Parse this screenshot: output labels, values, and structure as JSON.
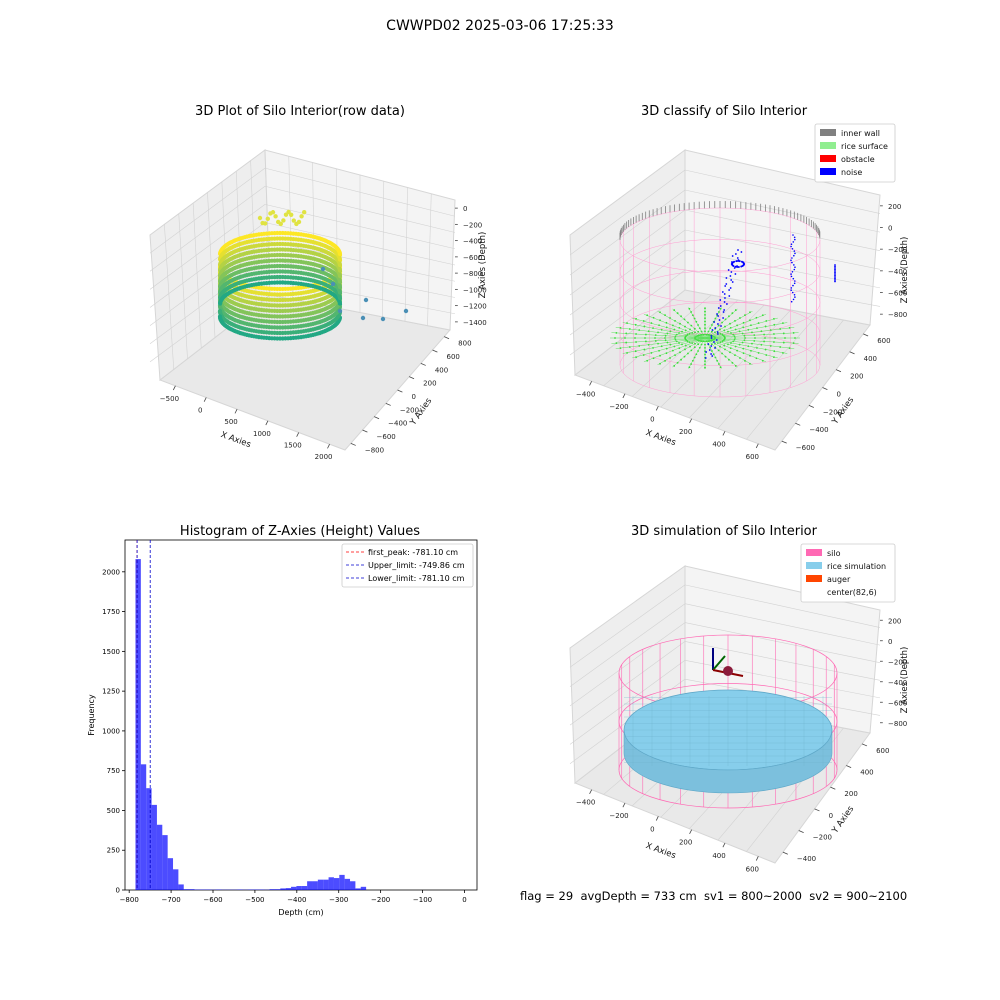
{
  "figure": {
    "suptitle": "CWWPD02 2025-03-06 17:25:33",
    "footer": "flag = 29  avgDepth = 733 cm  sv1 = 800~2000  sv2 = 900~2100"
  },
  "chart_data": [
    {
      "type": "scatter",
      "projection": "3d",
      "title": "3D Plot of Silo Interior(row data)",
      "xlabel": "X Axies",
      "ylabel": "Y Axies",
      "zlabel": "Z Axies (Depth)",
      "x_ticks": [
        "−500",
        "0",
        "500",
        "1000",
        "1500",
        "2000"
      ],
      "y_ticks": [
        "−800",
        "−600",
        "−400",
        "−200",
        "0",
        "200",
        "400",
        "600",
        "800"
      ],
      "z_ticks": [
        "0",
        "−200",
        "−400",
        "−600",
        "−800",
        "−1000",
        "−1200",
        "−1400"
      ],
      "colormap": "viridis",
      "series": [
        {
          "description": "point cloud ring (cylindrical wall band)",
          "color_range": [
            "#22a884",
            "#fde725"
          ]
        },
        {
          "description": "outlier points",
          "color": "#4a8fb5",
          "points": [
            [
              1200,
              -200,
              -1300
            ],
            [
              1450,
              -350,
              -1250
            ],
            [
              1350,
              -500,
              -1350
            ],
            [
              1700,
              -400,
              -1300
            ],
            [
              1300,
              -100,
              -1280
            ]
          ]
        }
      ],
      "grid": true
    },
    {
      "type": "scatter",
      "projection": "3d",
      "title": "3D classify of Silo Interior",
      "xlabel": "X Axies",
      "ylabel": "Y Axies",
      "zlabel": "Z Axies (Depth)",
      "x_ticks": [
        "−400",
        "−200",
        "0",
        "200",
        "400",
        "600"
      ],
      "y_ticks": [
        "−600",
        "−400",
        "−200",
        "0",
        "200",
        "400",
        "600"
      ],
      "z_ticks": [
        "200",
        "0",
        "−200",
        "−400",
        "−600",
        "−800"
      ],
      "series": [
        {
          "name": "inner wall",
          "color": "#808080"
        },
        {
          "name": "rice surface",
          "color": "#90ee90"
        },
        {
          "name": "obstacle",
          "color": "#ff0000"
        },
        {
          "name": "noise",
          "color": "#0000ff"
        }
      ],
      "legend": "top-right",
      "grid": true
    },
    {
      "type": "bar",
      "title": "Histogram of Z-Axies (Height) Values",
      "xlabel": "Depth (cm)",
      "ylabel": "Frequency",
      "xlim": [
        -810,
        30
      ],
      "ylim": [
        0,
        2200
      ],
      "x_ticks": [
        "−800",
        "−700",
        "−600",
        "−500",
        "−400",
        "−300",
        "−200",
        "−100",
        "0"
      ],
      "y_ticks": [
        "0",
        "250",
        "500",
        "750",
        "1000",
        "1250",
        "1500",
        "1750",
        "2000"
      ],
      "bin_start": -785,
      "bin_width": 12.8,
      "values": [
        2080,
        790,
        640,
        535,
        410,
        345,
        200,
        130,
        35,
        5,
        5,
        3,
        3,
        3,
        2,
        3,
        2,
        2,
        2,
        3,
        2,
        3,
        3,
        3,
        2,
        5,
        5,
        10,
        12,
        20,
        25,
        25,
        55,
        55,
        65,
        65,
        80,
        75,
        95,
        70,
        55,
        10,
        20
      ],
      "bar_color": "#0000ff",
      "vlines": [
        {
          "name": "first_peak: -781.10 cm",
          "x": -781.1,
          "color": "#ff0000"
        },
        {
          "name": "Upper_limit: -749.86 cm",
          "x": -749.86,
          "color": "#0000cc"
        },
        {
          "name": "Lower_limit: -781.10 cm",
          "x": -781.1,
          "color": "#0000cc"
        }
      ],
      "legend": "top-right"
    },
    {
      "type": "scatter",
      "projection": "3d",
      "title": "3D simulation of Silo Interior",
      "xlabel": "X Axies",
      "ylabel": "Y Axies",
      "zlabel": "Z Axies (Depth)",
      "x_ticks": [
        "−400",
        "−200",
        "0",
        "200",
        "400",
        "600"
      ],
      "y_ticks": [
        "−400",
        "−200",
        "0",
        "200",
        "400",
        "600"
      ],
      "z_ticks": [
        "200",
        "0",
        "−200",
        "−400",
        "−600",
        "−800"
      ],
      "series": [
        {
          "name": "silo",
          "color": "#ff69b4"
        },
        {
          "name": "rice simulation",
          "color": "#87ceeb"
        },
        {
          "name": "auger",
          "color": "#ff4500"
        },
        {
          "name": "center(82,6)",
          "color": "#ffffff"
        }
      ],
      "legend": "top-right",
      "grid": true
    }
  ]
}
